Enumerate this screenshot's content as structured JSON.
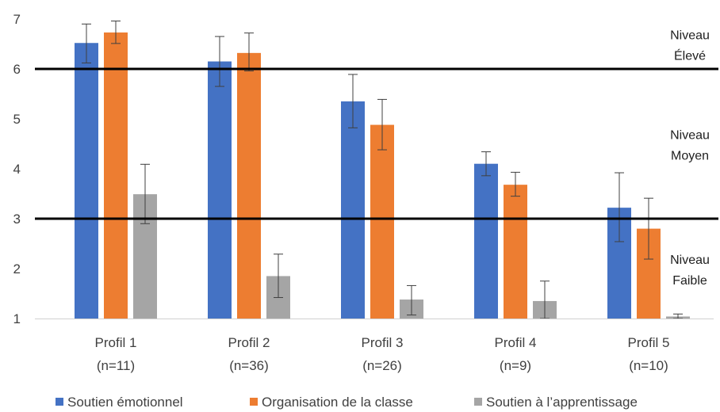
{
  "chart_data": {
    "type": "bar",
    "categories": [
      {
        "name": "Profil 1",
        "n": "(n=11)"
      },
      {
        "name": "Profil 2",
        "n": "(n=36)"
      },
      {
        "name": "Profil 3",
        "n": "(n=26)"
      },
      {
        "name": "Profil 4",
        "n": "(n=9)"
      },
      {
        "name": "Profil 5",
        "n": "(n=10)"
      }
    ],
    "series": [
      {
        "name": "Soutien émotionnel",
        "color": "#4472C4",
        "values": [
          6.52,
          6.15,
          5.35,
          4.1,
          3.22
        ],
        "error_low": [
          6.12,
          5.65,
          4.82,
          3.86,
          2.54
        ],
        "error_high": [
          6.9,
          6.65,
          5.89,
          4.34,
          3.92
        ]
      },
      {
        "name": "Organisation de la classe",
        "color": "#ED7D31",
        "values": [
          6.73,
          6.32,
          4.88,
          3.68,
          2.8
        ],
        "error_low": [
          6.51,
          5.96,
          4.38,
          3.45,
          2.19
        ],
        "error_high": [
          6.96,
          6.72,
          5.39,
          3.93,
          3.41
        ]
      },
      {
        "name": "Soutien à l’apprentissage",
        "color": "#A5A5A5",
        "values": [
          3.49,
          1.85,
          1.38,
          1.35,
          1.04
        ],
        "error_low": [
          2.9,
          1.42,
          1.07,
          1.0,
          1.0
        ],
        "error_high": [
          4.09,
          2.29,
          1.66,
          1.75,
          1.09
        ]
      }
    ],
    "y_ticks": [
      "1",
      "2",
      "3",
      "4",
      "5",
      "6",
      "7"
    ],
    "ylim": [
      1,
      7
    ],
    "grid": false,
    "legend_position": "bottom",
    "reference_lines": [
      6,
      3
    ],
    "bands": [
      {
        "line1": "Niveau",
        "line2": "Élevé",
        "y": 6.5
      },
      {
        "line1": "Niveau",
        "line2": "Moyen",
        "y": 4.5
      },
      {
        "line1": "Niveau",
        "line2": "Faible",
        "y": 2
      }
    ]
  }
}
